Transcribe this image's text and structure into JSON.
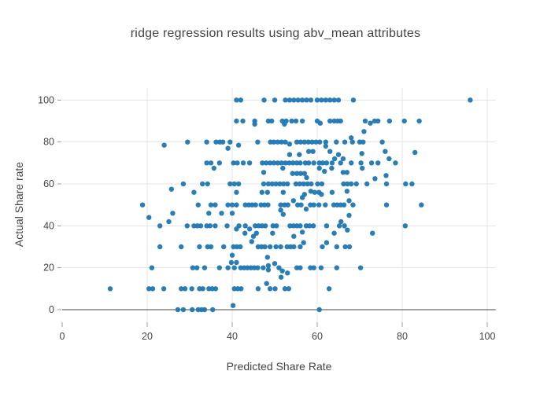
{
  "chart_data": {
    "type": "scatter",
    "title": "ridge regression results using abv_mean attributes",
    "xlabel": "Predicted Share Rate",
    "ylabel": "Actual Share rate",
    "xlim": [
      0,
      102
    ],
    "ylim": [
      -6,
      106
    ],
    "xticks": [
      0,
      20,
      40,
      60,
      80,
      100
    ],
    "yticks": [
      0,
      20,
      40,
      60,
      80,
      100
    ],
    "grid": true,
    "legend_visible": false,
    "marker_color": "#1f77b4",
    "grid_color": "#e5e5e5",
    "zeroline_color": "#444444",
    "tick_color": "#999999",
    "text_color": "#444444",
    "background_color": "#ffffff",
    "points": [
      [
        41,
        100
      ],
      [
        42,
        100
      ],
      [
        47.5,
        100
      ],
      [
        50,
        100
      ],
      [
        52.5,
        100
      ],
      [
        53.5,
        100
      ],
      [
        54.5,
        100
      ],
      [
        55.5,
        100
      ],
      [
        56.5,
        100
      ],
      [
        57.5,
        100
      ],
      [
        58.5,
        100
      ],
      [
        60,
        100
      ],
      [
        61,
        100
      ],
      [
        62,
        100
      ],
      [
        63,
        100
      ],
      [
        64,
        100
      ],
      [
        65,
        100
      ],
      [
        68.5,
        100
      ],
      [
        96,
        100
      ],
      [
        41,
        90
      ],
      [
        42.5,
        90
      ],
      [
        45.3,
        90
      ],
      [
        45.3,
        88.5
      ],
      [
        48.5,
        90
      ],
      [
        49.3,
        90
      ],
      [
        51.8,
        90
      ],
      [
        52.3,
        88.5
      ],
      [
        52.7,
        90
      ],
      [
        54,
        90
      ],
      [
        55,
        90
      ],
      [
        56.5,
        90
      ],
      [
        60,
        90
      ],
      [
        60.7,
        89
      ],
      [
        63,
        90
      ],
      [
        64,
        90
      ],
      [
        64.8,
        90
      ],
      [
        65.5,
        90
      ],
      [
        71.3,
        90
      ],
      [
        72.5,
        89
      ],
      [
        73.5,
        90
      ],
      [
        74.3,
        90
      ],
      [
        77,
        90
      ],
      [
        80.5,
        90
      ],
      [
        84,
        90
      ],
      [
        71,
        85
      ],
      [
        24,
        78.5
      ],
      [
        29.5,
        80
      ],
      [
        34,
        80
      ],
      [
        36.2,
        80
      ],
      [
        37.1,
        80
      ],
      [
        37.8,
        80
      ],
      [
        39.5,
        80
      ],
      [
        39,
        77
      ],
      [
        41.5,
        78.5
      ],
      [
        46,
        80
      ],
      [
        49,
        80
      ],
      [
        49.8,
        80
      ],
      [
        50.7,
        80
      ],
      [
        51.6,
        80
      ],
      [
        52.5,
        80
      ],
      [
        53.5,
        79
      ],
      [
        55.2,
        80
      ],
      [
        56.1,
        80
      ],
      [
        57,
        80
      ],
      [
        57.9,
        80
      ],
      [
        58.8,
        80
      ],
      [
        59.7,
        80
      ],
      [
        60.6,
        80
      ],
      [
        62,
        80
      ],
      [
        62,
        78
      ],
      [
        64.5,
        80
      ],
      [
        66.5,
        80
      ],
      [
        68,
        82
      ],
      [
        68.3,
        80
      ],
      [
        70,
        80
      ],
      [
        70.8,
        80
      ],
      [
        75.3,
        80
      ],
      [
        58,
        75.5
      ],
      [
        59,
        75.5
      ],
      [
        63,
        75.5
      ],
      [
        76,
        75.5
      ],
      [
        83,
        75
      ],
      [
        70.5,
        74.5
      ],
      [
        65,
        74
      ],
      [
        53.5,
        74
      ],
      [
        55.8,
        74
      ],
      [
        34,
        70
      ],
      [
        35,
        70
      ],
      [
        37,
        70
      ],
      [
        40.3,
        70
      ],
      [
        41.2,
        70
      ],
      [
        42.6,
        70
      ],
      [
        44.1,
        70
      ],
      [
        47.1,
        70
      ],
      [
        48,
        70
      ],
      [
        48.9,
        70
      ],
      [
        49.8,
        70
      ],
      [
        50.7,
        70
      ],
      [
        51.6,
        70
      ],
      [
        52.5,
        70
      ],
      [
        53.4,
        70
      ],
      [
        54.3,
        70
      ],
      [
        55.2,
        70
      ],
      [
        56,
        70
      ],
      [
        57.2,
        70
      ],
      [
        58,
        70
      ],
      [
        59.2,
        70
      ],
      [
        60.5,
        70
      ],
      [
        61.3,
        70
      ],
      [
        62.2,
        70
      ],
      [
        63.5,
        70
      ],
      [
        64.1,
        72
      ],
      [
        65.5,
        70
      ],
      [
        66.1,
        72
      ],
      [
        68,
        70
      ],
      [
        70.3,
        70
      ],
      [
        72.8,
        70
      ],
      [
        74.3,
        70
      ],
      [
        76.9,
        72
      ],
      [
        78.4,
        70
      ],
      [
        35.7,
        67.5
      ],
      [
        51.9,
        67.5
      ],
      [
        60.5,
        67.5
      ],
      [
        63.4,
        67.5
      ],
      [
        70.6,
        67.5
      ],
      [
        47.4,
        65.5
      ],
      [
        54.2,
        65
      ],
      [
        55.2,
        65
      ],
      [
        56.1,
        65
      ],
      [
        57,
        65
      ],
      [
        61.7,
        66
      ],
      [
        66.1,
        65.5
      ],
      [
        67,
        65.5
      ],
      [
        76.2,
        64
      ],
      [
        28.5,
        60
      ],
      [
        33,
        60
      ],
      [
        34.2,
        60
      ],
      [
        39.5,
        60
      ],
      [
        40.5,
        60
      ],
      [
        41.5,
        60
      ],
      [
        47.4,
        60
      ],
      [
        48.5,
        60
      ],
      [
        49.4,
        60
      ],
      [
        50.3,
        60
      ],
      [
        51.2,
        60
      ],
      [
        52.1,
        60
      ],
      [
        53,
        60
      ],
      [
        55,
        60
      ],
      [
        55.9,
        60
      ],
      [
        56.8,
        60
      ],
      [
        57.7,
        60
      ],
      [
        58.6,
        60
      ],
      [
        60.1,
        60
      ],
      [
        61.1,
        60
      ],
      [
        66.2,
        60
      ],
      [
        67.1,
        60
      ],
      [
        68,
        60
      ],
      [
        69.2,
        60
      ],
      [
        71.7,
        60
      ],
      [
        73.6,
        62.5
      ],
      [
        76.3,
        60
      ],
      [
        80.8,
        60
      ],
      [
        82.3,
        60
      ],
      [
        57.5,
        63
      ],
      [
        25.7,
        57.5
      ],
      [
        31,
        56
      ],
      [
        41,
        56
      ],
      [
        47,
        56
      ],
      [
        48.3,
        56
      ],
      [
        52,
        56
      ],
      [
        57,
        55
      ],
      [
        56.5,
        53.5
      ],
      [
        58.5,
        56.5
      ],
      [
        59.4,
        56
      ],
      [
        60.4,
        56
      ],
      [
        61,
        55
      ],
      [
        63.5,
        56
      ],
      [
        67,
        56.5
      ],
      [
        18.9,
        50
      ],
      [
        32,
        50
      ],
      [
        35,
        50
      ],
      [
        36,
        50
      ],
      [
        39,
        50
      ],
      [
        40,
        50
      ],
      [
        41,
        50
      ],
      [
        43.1,
        50
      ],
      [
        43.9,
        50
      ],
      [
        44.7,
        50
      ],
      [
        45.5,
        50
      ],
      [
        46.8,
        50
      ],
      [
        47.6,
        50
      ],
      [
        48.4,
        50
      ],
      [
        51.4,
        50
      ],
      [
        51.4,
        47.5
      ],
      [
        52.3,
        50
      ],
      [
        53.1,
        50
      ],
      [
        54.4,
        52
      ],
      [
        55.4,
        50
      ],
      [
        56.2,
        50
      ],
      [
        57.4,
        48
      ],
      [
        58.4,
        50
      ],
      [
        59.2,
        50
      ],
      [
        60.4,
        50
      ],
      [
        61.9,
        50
      ],
      [
        63.9,
        50
      ],
      [
        64.7,
        50
      ],
      [
        65.5,
        50
      ],
      [
        66.3,
        50
      ],
      [
        67.5,
        52
      ],
      [
        68.4,
        50
      ],
      [
        76.3,
        50
      ],
      [
        84.5,
        50
      ],
      [
        20.4,
        44
      ],
      [
        26,
        46
      ],
      [
        34.5,
        46
      ],
      [
        37.5,
        46
      ],
      [
        40,
        46
      ],
      [
        52,
        45.5
      ],
      [
        67.5,
        45
      ],
      [
        23,
        40
      ],
      [
        25.1,
        42
      ],
      [
        29.4,
        40
      ],
      [
        31,
        40
      ],
      [
        31.8,
        40
      ],
      [
        32.6,
        40
      ],
      [
        34,
        40
      ],
      [
        34.8,
        40
      ],
      [
        36,
        40
      ],
      [
        38.8,
        40
      ],
      [
        41,
        38.5
      ],
      [
        41.6,
        40
      ],
      [
        43.1,
        40
      ],
      [
        44.1,
        38.5
      ],
      [
        45.4,
        40
      ],
      [
        46.2,
        40
      ],
      [
        47,
        40
      ],
      [
        47.8,
        40
      ],
      [
        49.6,
        40
      ],
      [
        50.4,
        40
      ],
      [
        53.6,
        40
      ],
      [
        54.4,
        40
      ],
      [
        55.2,
        40
      ],
      [
        56,
        40
      ],
      [
        57.4,
        40
      ],
      [
        58.2,
        40
      ],
      [
        59.1,
        40
      ],
      [
        62.2,
        40
      ],
      [
        65.2,
        40
      ],
      [
        65.6,
        42
      ],
      [
        66.4,
        40
      ],
      [
        67.1,
        38
      ],
      [
        80.7,
        40
      ],
      [
        43,
        36.5
      ],
      [
        45,
        35
      ],
      [
        45.7,
        36.5
      ],
      [
        49.5,
        36.5
      ],
      [
        54.5,
        35
      ],
      [
        56.5,
        37
      ],
      [
        64,
        36.5
      ],
      [
        73,
        36.5
      ],
      [
        23,
        30
      ],
      [
        28,
        30
      ],
      [
        32.3,
        30
      ],
      [
        34.2,
        30
      ],
      [
        35,
        30
      ],
      [
        38,
        30
      ],
      [
        40.3,
        30
      ],
      [
        41.1,
        30
      ],
      [
        41.9,
        30
      ],
      [
        44.6,
        32.5
      ],
      [
        46.1,
        30
      ],
      [
        46.9,
        30
      ],
      [
        47.7,
        30
      ],
      [
        48.9,
        30
      ],
      [
        50.3,
        30
      ],
      [
        51.4,
        30
      ],
      [
        52.9,
        30
      ],
      [
        53.7,
        30
      ],
      [
        54.5,
        30
      ],
      [
        56,
        30
      ],
      [
        56.8,
        32
      ],
      [
        61.2,
        30
      ],
      [
        62.2,
        32
      ],
      [
        64.6,
        30
      ],
      [
        66.6,
        30
      ],
      [
        67.6,
        30
      ],
      [
        40,
        26
      ],
      [
        48.3,
        25
      ],
      [
        21.1,
        20
      ],
      [
        30.7,
        20
      ],
      [
        31.7,
        20
      ],
      [
        33.5,
        20
      ],
      [
        37,
        20
      ],
      [
        39,
        20
      ],
      [
        39.8,
        22.5
      ],
      [
        40.5,
        20
      ],
      [
        41,
        22.5
      ],
      [
        42,
        20
      ],
      [
        42.8,
        20
      ],
      [
        43.6,
        20
      ],
      [
        44.4,
        20
      ],
      [
        45.2,
        20
      ],
      [
        46,
        20
      ],
      [
        47.3,
        20
      ],
      [
        48.5,
        21
      ],
      [
        48.5,
        19
      ],
      [
        50,
        22
      ],
      [
        51,
        20
      ],
      [
        51.8,
        18.5
      ],
      [
        53,
        17.5
      ],
      [
        55.2,
        20
      ],
      [
        56,
        20
      ],
      [
        58.4,
        20
      ],
      [
        59.2,
        20
      ],
      [
        60.9,
        20
      ],
      [
        64.6,
        20
      ],
      [
        70.2,
        20
      ],
      [
        51.5,
        15.5
      ],
      [
        11.3,
        10
      ],
      [
        20.4,
        10
      ],
      [
        21.3,
        10
      ],
      [
        23.9,
        10
      ],
      [
        28,
        10
      ],
      [
        28.9,
        10
      ],
      [
        30.5,
        10
      ],
      [
        32.3,
        10
      ],
      [
        33.1,
        10
      ],
      [
        34.5,
        10
      ],
      [
        35.3,
        10
      ],
      [
        36.1,
        10
      ],
      [
        40.5,
        10
      ],
      [
        41.3,
        10
      ],
      [
        42.1,
        10
      ],
      [
        46.1,
        10
      ],
      [
        48.1,
        12.5
      ],
      [
        48.9,
        10
      ],
      [
        50.1,
        10
      ],
      [
        52.4,
        10
      ],
      [
        53.3,
        10
      ],
      [
        62.8,
        10
      ],
      [
        27.2,
        0
      ],
      [
        28.5,
        0
      ],
      [
        30.6,
        0
      ],
      [
        32,
        0
      ],
      [
        32.8,
        0
      ],
      [
        33.5,
        0
      ],
      [
        35.4,
        0
      ],
      [
        40.2,
        2
      ],
      [
        60.5,
        0
      ]
    ]
  }
}
